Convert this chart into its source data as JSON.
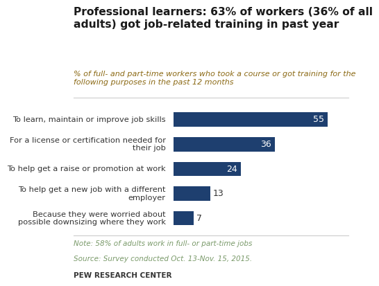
{
  "title_line1": "Professional learners: 63% of workers (36% of all",
  "title_line2": "adults) got job-related training in past year",
  "subtitle_line1": "% of full- and part-time workers who took a course or got training for the",
  "subtitle_line2": "following purposes in the past 12 months",
  "categories": [
    "To learn, maintain or improve job skills",
    "For a license or certification needed for\ntheir job",
    "To help get a raise or promotion at work",
    "To help get a new job with a different\nemployer",
    "Because they were worried about\npossible downsizing where they work"
  ],
  "values": [
    55,
    36,
    24,
    13,
    7
  ],
  "bar_color": "#1e3f6f",
  "value_color_inside": "#ffffff",
  "value_color_outside": "#333333",
  "note": "Note: 58% of adults work in full- or part-time jobs",
  "source": "Source: Survey conducted Oct. 13-Nov. 15, 2015.",
  "branding": "PEW RESEARCH CENTER",
  "xlim": [
    0,
    62
  ],
  "background_color": "#ffffff",
  "title_color": "#1a1a1a",
  "subtitle_color": "#8b6914",
  "note_color": "#7a9a6a",
  "source_color": "#7a9a6a"
}
